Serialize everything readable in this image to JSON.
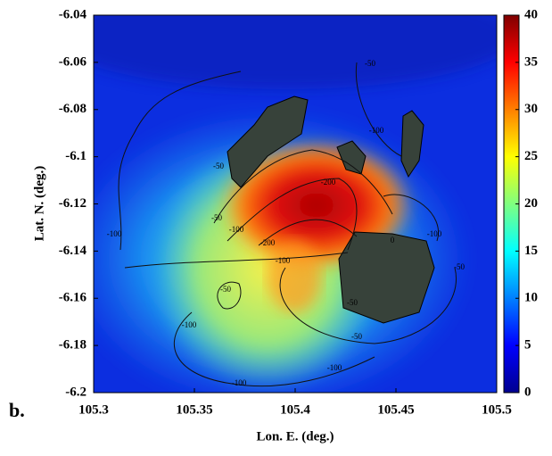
{
  "chart_data": {
    "type": "heatmap",
    "panel_label": "b.",
    "xlabel": "Lon. E. (deg.)",
    "ylabel": "Lat. N. (deg.)",
    "xlim": [
      105.3,
      105.5
    ],
    "xticks": [
      105.3,
      105.35,
      105.4,
      105.45,
      105.5
    ],
    "ylim": [
      -6.2,
      -6.04
    ],
    "yticks": [
      -6.2,
      -6.18,
      -6.16,
      -6.14,
      -6.12,
      -6.1,
      -6.08,
      -6.06,
      -6.04
    ],
    "colorbar": {
      "lim": [
        0,
        40
      ],
      "ticks": [
        0,
        5,
        10,
        15,
        20,
        25,
        30,
        35,
        40
      ]
    },
    "contour_labels": [
      -50,
      -100,
      -50,
      -50,
      -100,
      -100,
      -200,
      -200,
      -100,
      -100,
      0,
      -50,
      -50,
      -100,
      -50,
      -100,
      -100,
      -50
    ]
  }
}
